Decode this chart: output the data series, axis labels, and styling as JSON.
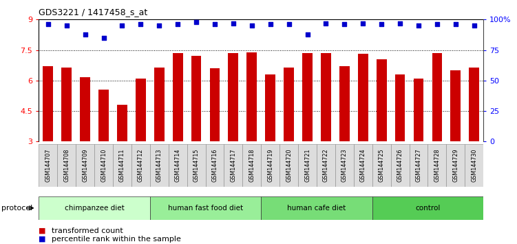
{
  "title": "GDS3221 / 1417458_s_at",
  "samples": [
    "GSM144707",
    "GSM144708",
    "GSM144709",
    "GSM144710",
    "GSM144711",
    "GSM144712",
    "GSM144713",
    "GSM144714",
    "GSM144715",
    "GSM144716",
    "GSM144717",
    "GSM144718",
    "GSM144719",
    "GSM144720",
    "GSM144721",
    "GSM144722",
    "GSM144723",
    "GSM144724",
    "GSM144725",
    "GSM144726",
    "GSM144727",
    "GSM144728",
    "GSM144729",
    "GSM144730"
  ],
  "bar_values": [
    6.7,
    6.65,
    6.15,
    5.55,
    4.8,
    6.1,
    6.65,
    7.35,
    7.2,
    6.6,
    7.35,
    7.4,
    6.3,
    6.65,
    7.35,
    7.35,
    6.7,
    7.3,
    7.05,
    6.3,
    6.1,
    7.35,
    6.5,
    6.65
  ],
  "percentile_values": [
    96,
    95,
    88,
    85,
    95,
    96,
    95,
    96,
    98,
    96,
    97,
    95,
    96,
    96,
    88,
    97,
    96,
    97,
    96,
    97,
    95,
    96,
    96,
    95
  ],
  "bar_color": "#cc0000",
  "percentile_color": "#0000cc",
  "ylim_left": [
    3,
    9
  ],
  "yticks_left": [
    3,
    4.5,
    6,
    7.5,
    9
  ],
  "ytick_labels_left": [
    "3",
    "4.5",
    "6",
    "7.5",
    "9"
  ],
  "ylim_right": [
    0,
    100
  ],
  "yticks_right": [
    0,
    25,
    50,
    75,
    100
  ],
  "ytick_labels_right": [
    "0",
    "25",
    "50",
    "75",
    "100%"
  ],
  "grid_lines": [
    4.5,
    6.0,
    7.5
  ],
  "protocol_groups": [
    {
      "label": "chimpanzee diet",
      "start": 0,
      "end": 6,
      "color": "#ccffcc"
    },
    {
      "label": "human fast food diet",
      "start": 6,
      "end": 12,
      "color": "#99ee99"
    },
    {
      "label": "human cafe diet",
      "start": 12,
      "end": 18,
      "color": "#77dd77"
    },
    {
      "label": "control",
      "start": 18,
      "end": 24,
      "color": "#55cc55"
    }
  ],
  "legend_items": [
    {
      "label": "transformed count",
      "color": "#cc0000"
    },
    {
      "label": "percentile rank within the sample",
      "color": "#0000cc"
    }
  ],
  "protocol_label": "protocol"
}
